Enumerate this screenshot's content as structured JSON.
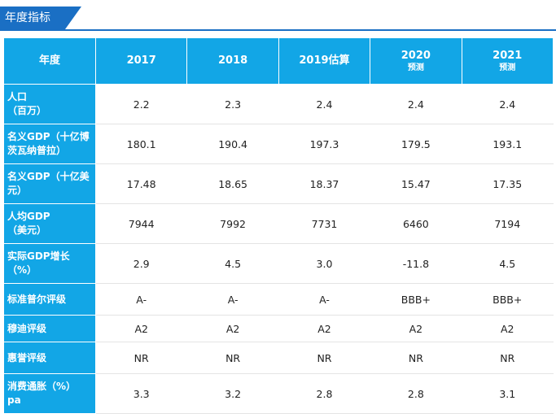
{
  "section_title": "年度指标",
  "header": {
    "row_label": "年度",
    "columns": [
      {
        "year": "2017",
        "note": ""
      },
      {
        "year": "2018",
        "note": ""
      },
      {
        "year": "2019估算",
        "note": ""
      },
      {
        "year": "2020",
        "note": "预测"
      },
      {
        "year": "2021",
        "note": "预测"
      }
    ]
  },
  "rows": [
    {
      "label_line1": "人口",
      "label_line2": "（百万）",
      "values": [
        "2.2",
        "2.3",
        "2.4",
        "2.4",
        "2.4"
      ]
    },
    {
      "label_line1": "名义GDP（十亿博",
      "label_line2": "茨瓦纳普拉）",
      "values": [
        "180.1",
        "190.4",
        "197.3",
        "179.5",
        "193.1"
      ]
    },
    {
      "label_line1": "名义GDP（十亿美",
      "label_line2": "元）",
      "values": [
        "17.48",
        "18.65",
        "18.37",
        "15.47",
        "17.35"
      ]
    },
    {
      "label_line1": "人均GDP",
      "label_line2": "（美元）",
      "values": [
        "7944",
        "7992",
        "7731",
        "6460",
        "7194"
      ]
    },
    {
      "label_line1": "实际GDP增长",
      "label_line2": "（%）",
      "values": [
        "2.9",
        "4.5",
        "3.0",
        "-11.8",
        "4.5"
      ]
    },
    {
      "label_line1": "标准普尔评级",
      "label_line2": "",
      "values": [
        "A-",
        "A-",
        "A-",
        "BBB+",
        "BBB+"
      ]
    },
    {
      "label_line1": "穆迪评级",
      "label_line2": "",
      "values": [
        "A2",
        "A2",
        "A2",
        "A2",
        "A2"
      ]
    },
    {
      "label_line1": "惠誉评级",
      "label_line2": "",
      "values": [
        "NR",
        "NR",
        "NR",
        "NR",
        "NR"
      ]
    },
    {
      "label_line1": "消费通胀（%）",
      "label_line2": "pa",
      "values": [
        "3.3",
        "3.2",
        "2.8",
        "2.8",
        "3.1"
      ]
    }
  ],
  "colors": {
    "accent": "#1a6fc4",
    "header_fill": "#12a6e6",
    "text": "#222222"
  }
}
